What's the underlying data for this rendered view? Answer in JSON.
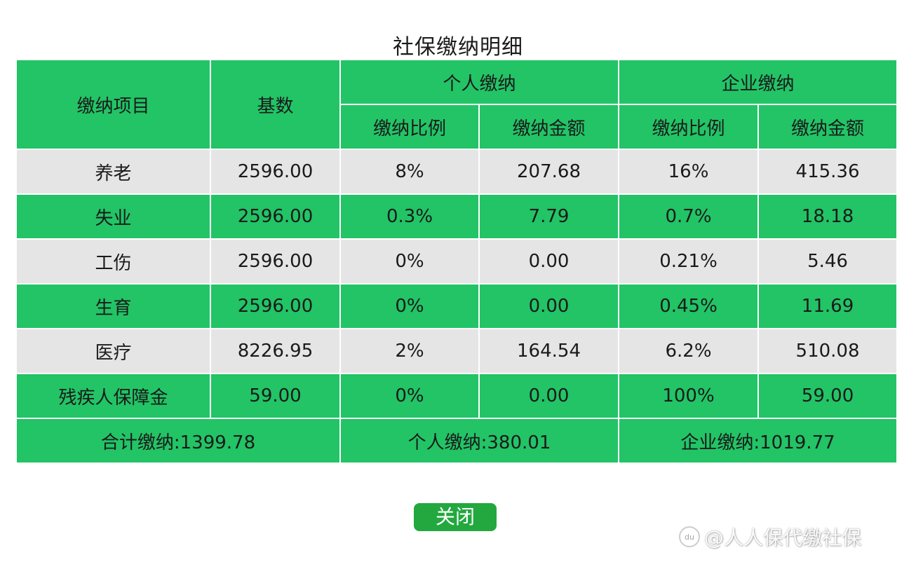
{
  "title": "社保缴纳明细",
  "header": {
    "item": "缴纳项目",
    "base": "基数",
    "personal": "个人缴纳",
    "company": "企业缴纳",
    "rate": "缴纳比例",
    "amount": "缴纳金额"
  },
  "rows": [
    {
      "item": "养老",
      "base": "2596.00",
      "p_rate": "8%",
      "p_amount": "207.68",
      "c_rate": "16%",
      "c_amount": "415.36"
    },
    {
      "item": "失业",
      "base": "2596.00",
      "p_rate": "0.3%",
      "p_amount": "7.79",
      "c_rate": "0.7%",
      "c_amount": "18.18"
    },
    {
      "item": "工伤",
      "base": "2596.00",
      "p_rate": "0%",
      "p_amount": "0.00",
      "c_rate": "0.21%",
      "c_amount": "5.46"
    },
    {
      "item": "生育",
      "base": "2596.00",
      "p_rate": "0%",
      "p_amount": "0.00",
      "c_rate": "0.45%",
      "c_amount": "11.69"
    },
    {
      "item": "医疗",
      "base": "8226.95",
      "p_rate": "2%",
      "p_amount": "164.54",
      "c_rate": "6.2%",
      "c_amount": "510.08"
    },
    {
      "item": "残疾人保障金",
      "base": "59.00",
      "p_rate": "0%",
      "p_amount": "0.00",
      "c_rate": "100%",
      "c_amount": "59.00"
    }
  ],
  "totals": {
    "total": "合计缴纳:1399.78",
    "personal": "个人缴纳:380.01",
    "company": "企业缴纳:1019.77"
  },
  "close_label": "关闭",
  "watermark": {
    "logo": "du",
    "text": "@人人保代缴社保"
  },
  "colors": {
    "green": "#22c466",
    "gray": "#e5e5e5",
    "button": "#22a83e"
  }
}
